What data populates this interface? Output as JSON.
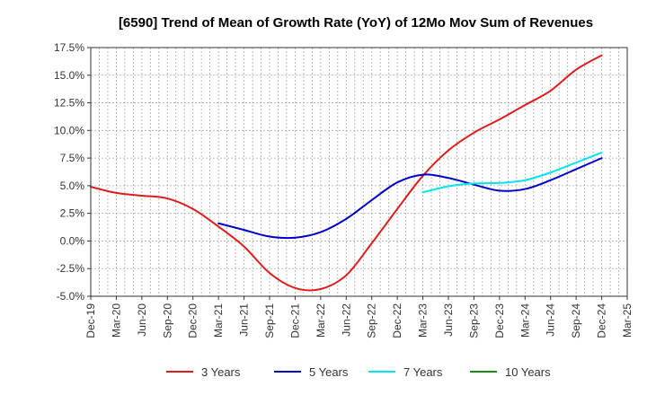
{
  "chart_data": {
    "type": "line",
    "title": "[6590]  Trend of Mean of Growth Rate (YoY) of 12Mo Mov Sum of Revenues",
    "xlabel": "",
    "ylabel": "",
    "ylim": [
      -5.0,
      17.5
    ],
    "yticks": [
      -5.0,
      -2.5,
      0.0,
      2.5,
      5.0,
      7.5,
      10.0,
      12.5,
      15.0,
      17.5
    ],
    "ytick_labels": [
      "-5.0%",
      "-2.5%",
      "0.0%",
      "2.5%",
      "5.0%",
      "7.5%",
      "10.0%",
      "12.5%",
      "15.0%",
      "17.5%"
    ],
    "x_tick_labels": [
      "Dec-19",
      "Mar-20",
      "Jun-20",
      "Sep-20",
      "Dec-20",
      "Mar-21",
      "Jun-21",
      "Sep-21",
      "Dec-21",
      "Mar-22",
      "Jun-22",
      "Sep-22",
      "Dec-22",
      "Mar-23",
      "Jun-23",
      "Sep-23",
      "Dec-23",
      "Mar-24",
      "Jun-24",
      "Sep-24",
      "Dec-24",
      "Mar-25"
    ],
    "grid": true,
    "legend_position": "bottom",
    "series": [
      {
        "name": "3 Years",
        "color": "#dd1c1c",
        "start_index": 0,
        "values": [
          4.9,
          4.35,
          4.1,
          3.85,
          2.9,
          1.3,
          -0.5,
          -2.9,
          -4.25,
          -4.35,
          -3.1,
          -0.2,
          2.9,
          5.9,
          8.2,
          9.8,
          11.0,
          12.3,
          13.6,
          15.5,
          16.8
        ]
      },
      {
        "name": "5 Years",
        "color": "#0000c8",
        "start_index": 5,
        "values": [
          1.6,
          1.0,
          0.4,
          0.3,
          0.8,
          2.0,
          3.7,
          5.3,
          6.0,
          5.7,
          5.1,
          4.55,
          4.7,
          5.5,
          6.5,
          7.5
        ]
      },
      {
        "name": "7 Years",
        "color": "#00e5ee",
        "start_index": 13,
        "values": [
          4.4,
          4.95,
          5.2,
          5.25,
          5.5,
          6.2,
          7.1,
          8.0
        ]
      },
      {
        "name": "10 Years",
        "color": "#1a8a1a",
        "start_index": 0,
        "values": []
      }
    ]
  }
}
